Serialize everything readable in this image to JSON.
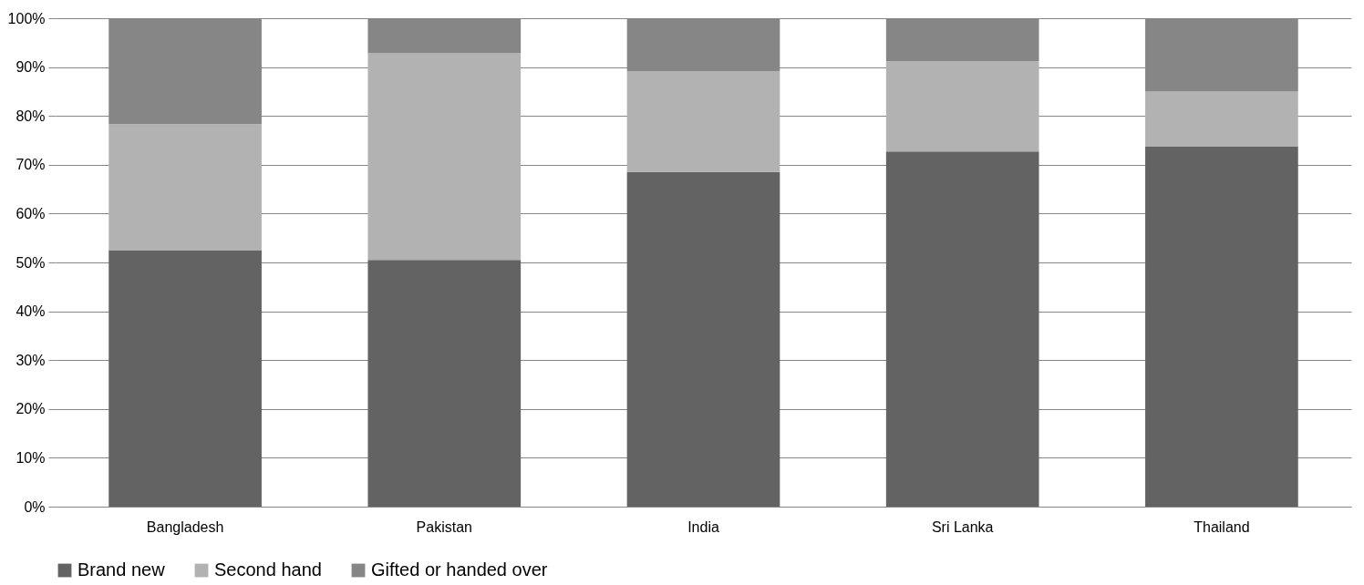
{
  "chart_data": {
    "type": "bar",
    "stacked": true,
    "categories": [
      "Bangladesh",
      "Pakistan",
      "India",
      "Sri Lanka",
      "Thailand"
    ],
    "series": [
      {
        "name": "Brand new",
        "color": "#636363",
        "values": [
          52.5,
          50.5,
          68.5,
          72.7,
          73.8
        ]
      },
      {
        "name": "Second hand",
        "color": "#b2b2b2",
        "values": [
          25.8,
          42.3,
          20.7,
          18.5,
          11.2
        ]
      },
      {
        "name": "Gifted or handed over",
        "color": "#868686",
        "values": [
          21.7,
          7.2,
          10.8,
          8.8,
          15.0
        ]
      }
    ],
    "ylim": [
      0,
      100
    ],
    "yticks": [
      {
        "value": 0,
        "label": "0%"
      },
      {
        "value": 10,
        "label": "10%"
      },
      {
        "value": 20,
        "label": "20%"
      },
      {
        "value": 30,
        "label": "30%"
      },
      {
        "value": 40,
        "label": "40%"
      },
      {
        "value": 50,
        "label": "50%"
      },
      {
        "value": 60,
        "label": "60%"
      },
      {
        "value": 70,
        "label": "70%"
      },
      {
        "value": 80,
        "label": "80%"
      },
      {
        "value": 90,
        "label": "90%"
      },
      {
        "value": 100,
        "label": "100%"
      }
    ],
    "grid": "y",
    "legend": "bottom"
  }
}
